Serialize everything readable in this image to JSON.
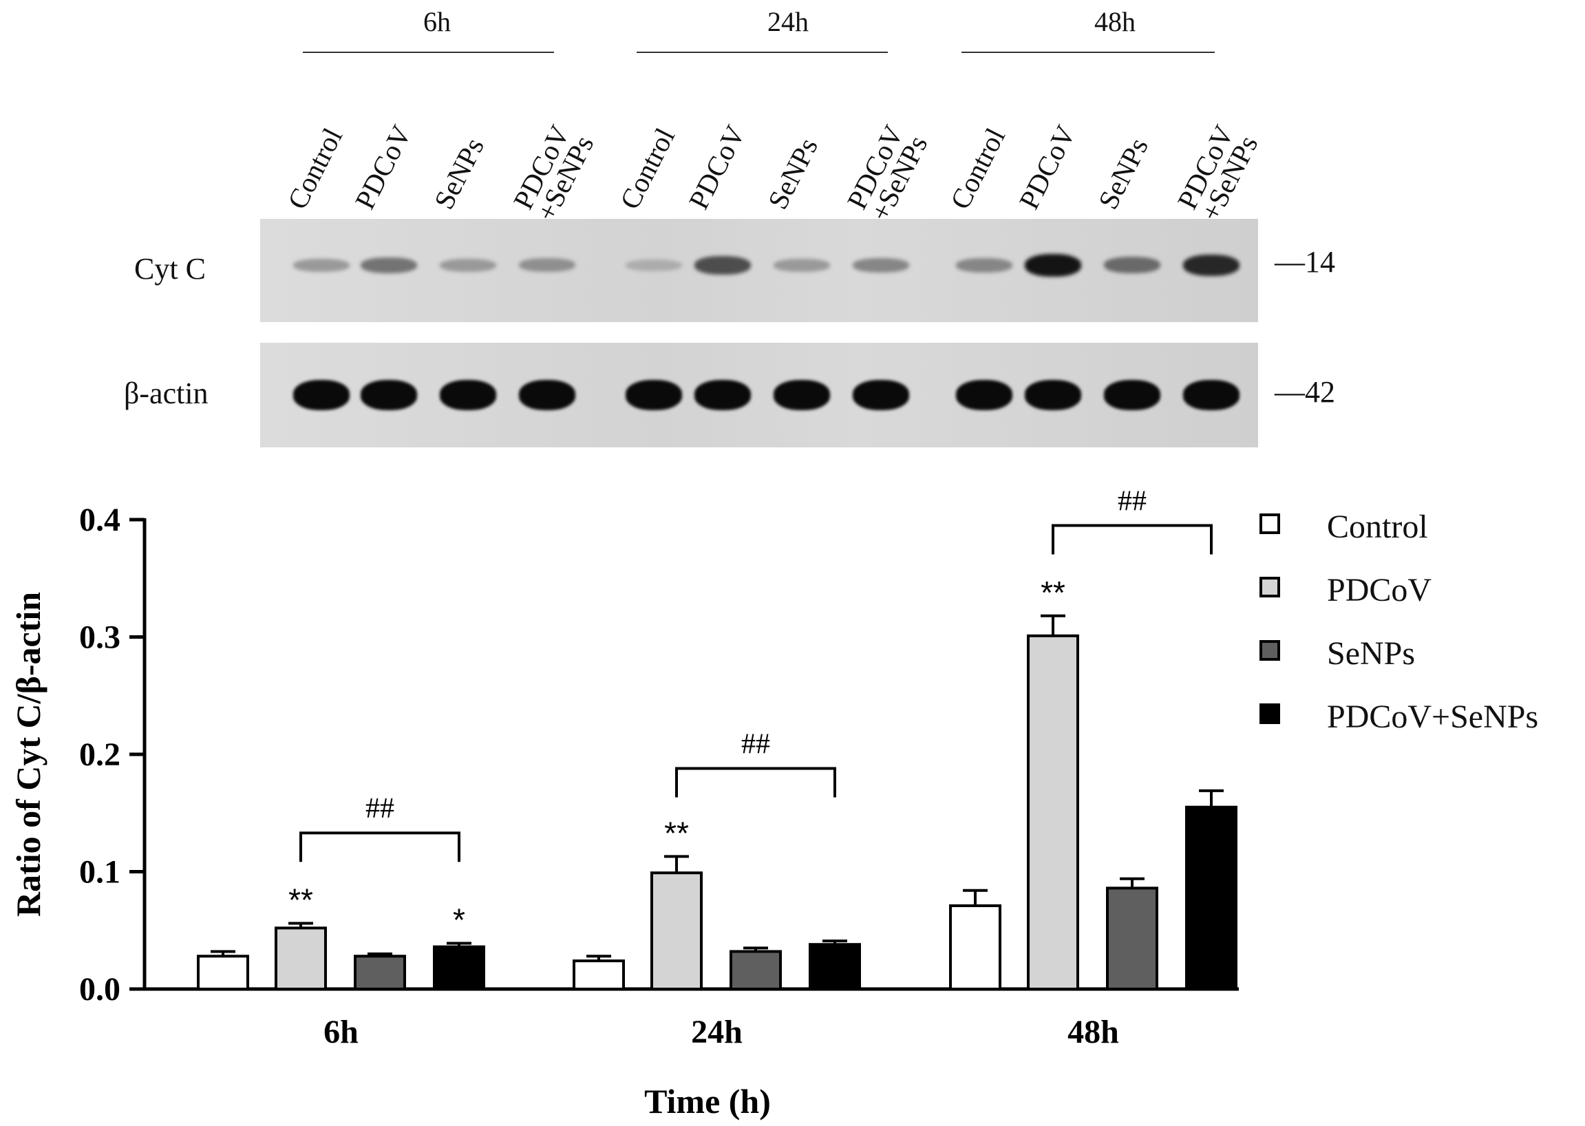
{
  "blot": {
    "timepoints": [
      "6h",
      "24h",
      "48h"
    ],
    "lanes": [
      "Control",
      "PDCoV",
      "SeNPs",
      "PDCoV\n+SeNPs"
    ],
    "rows": [
      {
        "label": "Cyt C",
        "mw": "—14",
        "intensity": [
          0.25,
          0.45,
          0.25,
          0.3,
          0.15,
          0.65,
          0.25,
          0.35,
          0.35,
          0.95,
          0.5,
          0.85
        ]
      },
      {
        "label": "β-actin",
        "mw": "—42",
        "intensity": [
          1,
          1,
          1,
          1,
          1,
          1,
          1,
          1,
          1,
          1,
          1,
          1
        ]
      }
    ]
  },
  "legend": [
    {
      "label": "Control",
      "color": "#ffffff"
    },
    {
      "label": "PDCoV",
      "color": "#d4d4d4"
    },
    {
      "label": "SeNPs",
      "color": "#5f5f5f"
    },
    {
      "label": "PDCoV+SeNPs",
      "color": "#000000"
    }
  ],
  "chart_data": {
    "type": "bar",
    "categories": [
      "6h",
      "24h",
      "48h"
    ],
    "xlabel": "Time (h)",
    "ylabel": "Ratio of Cyt C/β-actin",
    "ylim": [
      0,
      0.4
    ],
    "yticks": [
      "0.0",
      "0.1",
      "0.2",
      "0.3",
      "0.4"
    ],
    "series": [
      {
        "name": "Control",
        "color": "#ffffff",
        "values": [
          0.028,
          0.024,
          0.071
        ],
        "errors": [
          0.004,
          0.004,
          0.013
        ]
      },
      {
        "name": "PDCoV",
        "color": "#d4d4d4",
        "values": [
          0.052,
          0.099,
          0.301
        ],
        "errors": [
          0.004,
          0.014,
          0.017
        ]
      },
      {
        "name": "SeNPs",
        "color": "#5f5f5f",
        "values": [
          0.028,
          0.032,
          0.086
        ],
        "errors": [
          0.002,
          0.003,
          0.008
        ]
      },
      {
        "name": "PDCoV+SeNPs",
        "color": "#000000",
        "values": [
          0.036,
          0.038,
          0.155
        ],
        "errors": [
          0.003,
          0.003,
          0.014
        ]
      }
    ],
    "annotations": [
      {
        "category": 0,
        "series": 1,
        "text": "**"
      },
      {
        "category": 0,
        "series": 3,
        "text": "*"
      },
      {
        "category": 1,
        "series": 1,
        "text": "**"
      },
      {
        "category": 2,
        "series": 1,
        "text": "**"
      }
    ],
    "brackets": [
      {
        "category": 0,
        "from_series": 1,
        "to_series": 3,
        "level": 0.133,
        "text": "##"
      },
      {
        "category": 1,
        "from_series": 1,
        "to_series": 3,
        "level": 0.188,
        "text": "##"
      },
      {
        "category": 2,
        "from_series": 1,
        "to_series": 3,
        "level": 0.395,
        "text": "##"
      }
    ]
  }
}
